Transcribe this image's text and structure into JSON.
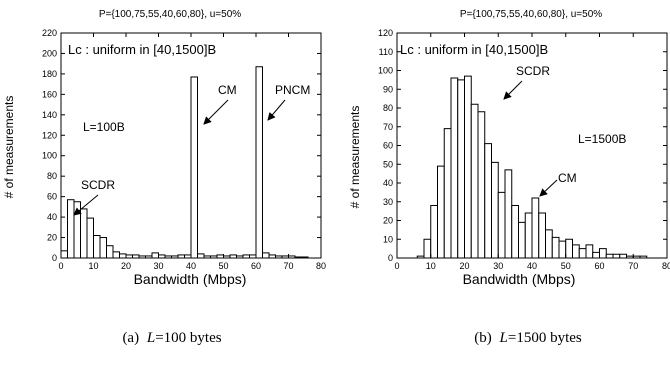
{
  "chart_data": [
    {
      "type": "bar",
      "title": "P={100,75,55,40,60,80}, u=50%",
      "xlabel": "Bandwidth (Mbps)",
      "ylabel": "# of measurements",
      "xlim": [
        0,
        80
      ],
      "ylim": [
        0,
        220
      ],
      "xticks": [
        0,
        10,
        20,
        30,
        40,
        50,
        60,
        70,
        80
      ],
      "yticks": [
        0,
        20,
        40,
        60,
        80,
        100,
        120,
        140,
        160,
        180,
        200,
        220
      ],
      "x_tick_labels": [
        "0",
        "10",
        "20",
        "30",
        "40",
        "50",
        "60",
        "70",
        "80"
      ],
      "y_tick_labels": [
        "0",
        "20",
        "40",
        "60",
        "80",
        "100",
        "120",
        "140",
        "160",
        "180",
        "200",
        "220"
      ],
      "bin_width": 2,
      "bin_starts": [
        0,
        2,
        4,
        6,
        8,
        10,
        12,
        14,
        16,
        18,
        20,
        22,
        24,
        26,
        28,
        30,
        32,
        34,
        36,
        38,
        40,
        42,
        44,
        46,
        48,
        50,
        52,
        54,
        56,
        58,
        60,
        62,
        64,
        66,
        68,
        70,
        72,
        74,
        76,
        78
      ],
      "values": [
        7,
        57,
        55,
        48,
        39,
        22,
        20,
        12,
        6,
        4,
        3,
        3,
        2,
        2,
        5,
        3,
        2,
        2,
        3,
        3,
        177,
        4,
        2,
        2,
        3,
        2,
        3,
        2,
        3,
        3,
        187,
        5,
        3,
        2,
        2,
        2,
        1,
        1,
        0,
        0
      ],
      "annotations": [
        "Lc : uniform in [40,1500]B",
        "L=100B",
        "SCDR",
        "CM",
        "PNCM"
      ],
      "grid": false,
      "caption": {
        "prefix": "(a)",
        "var": "L",
        "value": "=100 bytes"
      }
    },
    {
      "type": "bar",
      "title": "P={100,75,55,40,60,80}, u=50%",
      "xlabel": "Bandwidth (Mbps)",
      "ylabel": "# of measurements",
      "xlim": [
        0,
        80
      ],
      "ylim": [
        0,
        120
      ],
      "xticks": [
        0,
        10,
        20,
        30,
        40,
        50,
        60,
        70,
        80
      ],
      "yticks": [
        0,
        10,
        20,
        30,
        40,
        50,
        60,
        70,
        80,
        90,
        100,
        110,
        120
      ],
      "x_tick_labels": [
        "0",
        "10",
        "20",
        "30",
        "40",
        "50",
        "60",
        "70",
        "80"
      ],
      "y_tick_labels": [
        "0",
        "10",
        "20",
        "30",
        "40",
        "50",
        "60",
        "70",
        "80",
        "90",
        "100",
        "110",
        "120"
      ],
      "bin_width": 2,
      "bin_starts": [
        0,
        2,
        4,
        6,
        8,
        10,
        12,
        14,
        16,
        18,
        20,
        22,
        24,
        26,
        28,
        30,
        32,
        34,
        36,
        38,
        40,
        42,
        44,
        46,
        48,
        50,
        52,
        54,
        56,
        58,
        60,
        62,
        64,
        66,
        68,
        70,
        72,
        74,
        76,
        78
      ],
      "values": [
        0,
        0,
        0,
        1,
        10,
        28,
        49,
        69,
        96,
        95,
        97,
        82,
        78,
        61,
        51,
        35,
        47,
        28,
        19,
        24,
        32,
        24,
        15,
        11,
        9,
        10,
        7,
        5,
        7,
        3,
        5,
        2,
        2,
        2,
        1,
        1,
        1,
        0,
        0,
        0
      ],
      "annotations": [
        "Lc : uniform in [40,1500]B",
        "L=1500B",
        "SCDR",
        "CM"
      ],
      "grid": false,
      "caption": {
        "prefix": "(b)",
        "var": "L",
        "value": "=1500 bytes"
      }
    }
  ]
}
